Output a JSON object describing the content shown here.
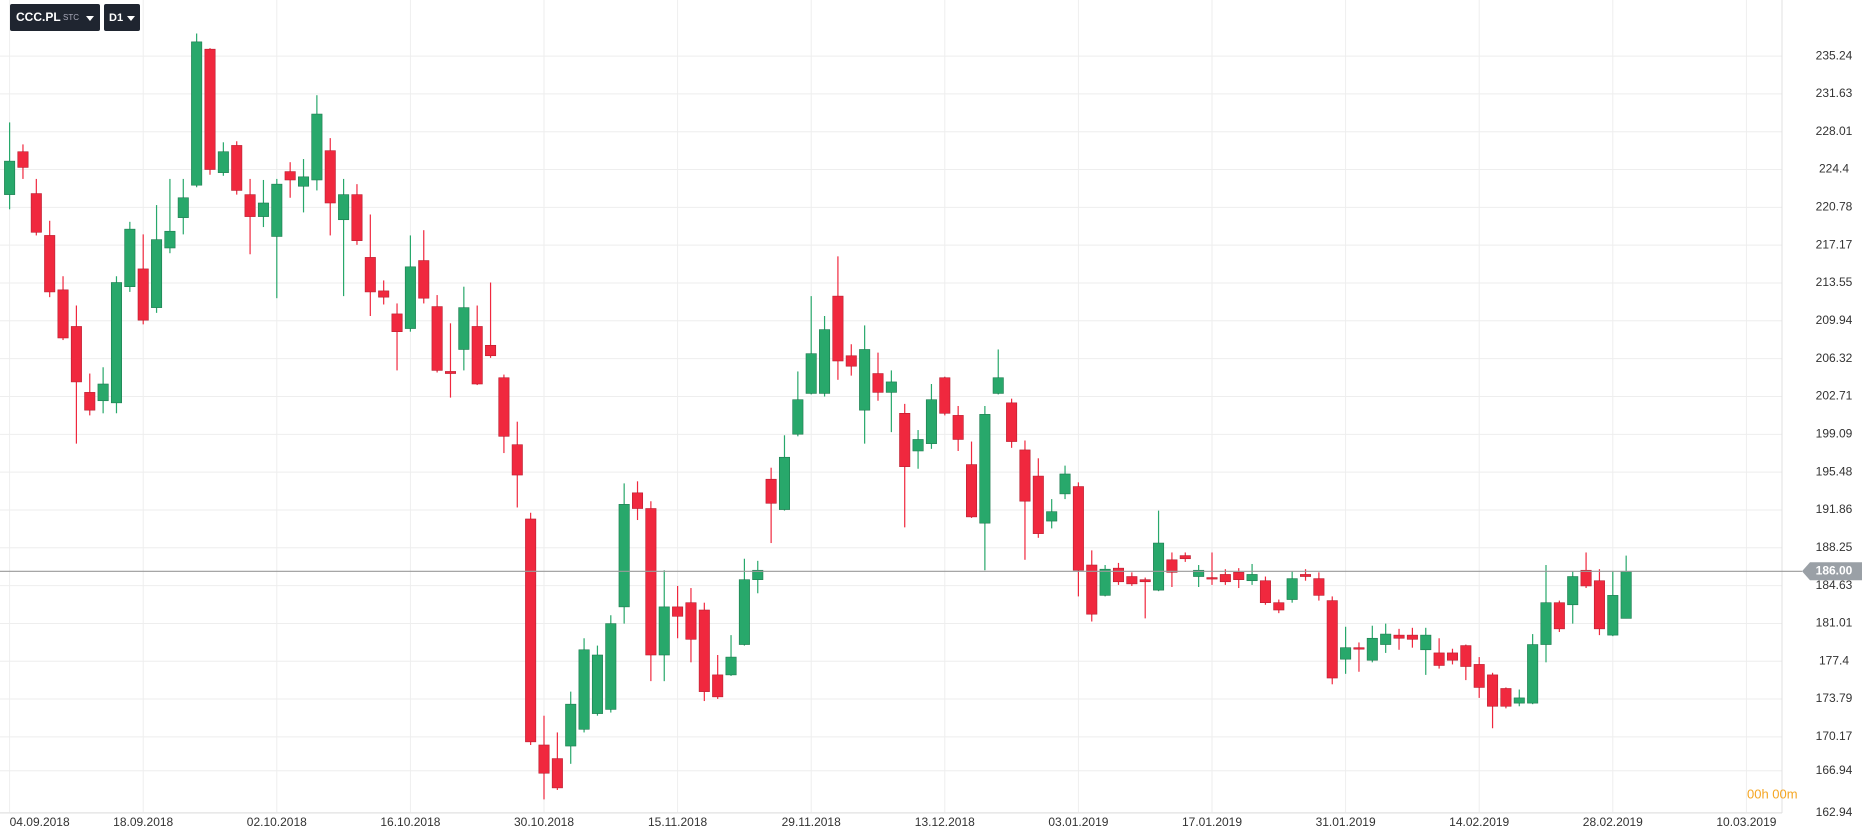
{
  "chart_data": {
    "type": "candlestick",
    "symbol": "CCC.PL",
    "market": "STC",
    "timeframe": "D1",
    "countdown": "00h 00m",
    "current_price": {
      "value": 186,
      "label": "186.00"
    },
    "up_color": "#28a86b",
    "down_color": "#f0283e",
    "grid": true,
    "categories": [
      "04.09.2018",
      null,
      null,
      null,
      null,
      null,
      null,
      null,
      null,
      null,
      "18.09.2018",
      null,
      null,
      null,
      null,
      null,
      null,
      null,
      null,
      null,
      "02.10.2018",
      null,
      null,
      null,
      null,
      null,
      null,
      null,
      null,
      null,
      "16.10.2018",
      null,
      null,
      null,
      null,
      null,
      null,
      null,
      null,
      null,
      "30.10.2018",
      null,
      null,
      null,
      null,
      null,
      null,
      null,
      null,
      null,
      "15.11.2018",
      null,
      null,
      null,
      null,
      null,
      null,
      null,
      null,
      null,
      "29.11.2018",
      null,
      null,
      null,
      null,
      null,
      null,
      null,
      null,
      null,
      "13.12.2018",
      null,
      null,
      null,
      null,
      null,
      null,
      null,
      null,
      null,
      "03.01.2019",
      null,
      null,
      null,
      null,
      null,
      null,
      null,
      null,
      null,
      "17.01.2019",
      null,
      null,
      null,
      null,
      null,
      null,
      null,
      null,
      null,
      "31.01.2019",
      null,
      null,
      null,
      null,
      null,
      null,
      null,
      null,
      null,
      "14.02.2019",
      null,
      null,
      null,
      null,
      null,
      null,
      null,
      null,
      null,
      "28.02.2019",
      null,
      null,
      null,
      null,
      null,
      null,
      null,
      null,
      null,
      "10.03.2019"
    ],
    "open": [
      222.0,
      226.1,
      222.1,
      218.1,
      212.9,
      209.4,
      203.1,
      202.3,
      202.1,
      213.2,
      214.9,
      211.2,
      216.9,
      219.8,
      222.9,
      235.9,
      224.1,
      226.7,
      222.0,
      219.9,
      218.0,
      224.2,
      222.8,
      223.4,
      226.2,
      219.6,
      222.0,
      216.0,
      212.8,
      210.6,
      209.2,
      215.7,
      211.3,
      205.1,
      207.2,
      209.4,
      207.6,
      204.5,
      198.1,
      191.0,
      169.4,
      168.1,
      169.3,
      170.9,
      172.4,
      172.8,
      182.6,
      193.5,
      192.0,
      178.0,
      182.6,
      183.0,
      182.3,
      176.1,
      176.1,
      179.0,
      185.2,
      194.8,
      191.9,
      199.1,
      203.0,
      203.0,
      212.3,
      206.6,
      201.4,
      204.9,
      203.1,
      201.1,
      197.5,
      198.2,
      204.5,
      200.9,
      196.2,
      190.6,
      203.0,
      202.1,
      197.6,
      195.1,
      190.8,
      193.4,
      194.1,
      186.6,
      183.7,
      186.3,
      185.5,
      185.2,
      184.2,
      187.1,
      187.5,
      185.5,
      185.4,
      185.7,
      185.9,
      185.1,
      185.1,
      183.0,
      183.3,
      185.7,
      185.3,
      183.2,
      177.6,
      178.7,
      177.5,
      179.0,
      179.9,
      179.9,
      178.5,
      178.2,
      178.2,
      178.9,
      177.1,
      176.1,
      174.8,
      173.4,
      173.4,
      179.0,
      183.0,
      182.8,
      186.1,
      185.1,
      179.9,
      181.5,
      null,
      null,
      null,
      null,
      null,
      null,
      null,
      null,
      null
    ],
    "close": [
      225.2,
      224.6,
      218.4,
      212.7,
      208.3,
      204.1,
      201.4,
      203.9,
      213.6,
      218.7,
      210.0,
      217.7,
      218.5,
      221.7,
      236.6,
      224.4,
      226.1,
      222.4,
      219.9,
      221.2,
      223.0,
      223.4,
      223.7,
      229.7,
      221.2,
      222.0,
      217.6,
      212.7,
      212.2,
      208.9,
      215.1,
      212.1,
      205.2,
      204.9,
      211.2,
      203.9,
      206.6,
      198.9,
      195.2,
      169.7,
      166.7,
      165.3,
      173.3,
      178.5,
      178.0,
      181.0,
      192.4,
      192.0,
      178.0,
      182.6,
      181.7,
      179.5,
      174.5,
      174.0,
      177.8,
      185.2,
      186.1,
      192.5,
      196.9,
      202.4,
      206.8,
      209.1,
      206.1,
      205.6,
      207.2,
      203.1,
      204.1,
      196.0,
      198.6,
      202.4,
      201.1,
      198.6,
      191.2,
      201.0,
      204.5,
      198.4,
      192.7,
      189.6,
      191.7,
      195.3,
      186.1,
      181.9,
      186.2,
      185.0,
      184.8,
      185.0,
      188.7,
      185.9,
      187.2,
      186.1,
      185.3,
      185.0,
      185.2,
      185.7,
      183.0,
      182.3,
      185.3,
      185.5,
      183.7,
      175.8,
      178.7,
      178.6,
      179.6,
      180.0,
      179.6,
      179.5,
      179.9,
      177.0,
      177.5,
      176.9,
      174.9,
      173.1,
      173.1,
      173.9,
      179.0,
      183.0,
      180.5,
      185.5,
      184.6,
      180.5,
      183.7,
      186.0,
      null,
      null,
      null,
      null,
      null,
      null,
      null,
      null,
      null
    ],
    "high": [
      228.9,
      226.8,
      223.5,
      219.5,
      214.2,
      211.4,
      204.9,
      205.5,
      214.2,
      219.4,
      218.2,
      221.0,
      223.5,
      223.5,
      237.4,
      236.0,
      227.0,
      227.1,
      223.5,
      223.4,
      223.5,
      225.1,
      225.4,
      231.5,
      227.4,
      223.5,
      223.0,
      220.1,
      213.8,
      211.6,
      218.1,
      218.6,
      212.4,
      209.7,
      213.2,
      211.4,
      213.6,
      204.8,
      200.3,
      191.6,
      172.2,
      170.6,
      174.5,
      179.6,
      178.9,
      181.8,
      194.4,
      194.6,
      192.7,
      186.1,
      184.6,
      184.4,
      183.0,
      178.0,
      179.9,
      187.2,
      187.0,
      195.9,
      199.0,
      205.1,
      212.3,
      210.4,
      216.1,
      207.7,
      209.5,
      206.9,
      205.2,
      202.0,
      199.5,
      203.9,
      204.6,
      201.8,
      198.4,
      201.8,
      207.2,
      202.5,
      198.5,
      196.8,
      192.9,
      196.1,
      194.5,
      188.0,
      186.6,
      186.8,
      185.9,
      185.4,
      191.8,
      187.8,
      187.8,
      186.6,
      187.8,
      186.2,
      186.3,
      186.7,
      185.5,
      183.3,
      186.0,
      186.2,
      185.9,
      183.6,
      180.7,
      179.2,
      180.8,
      181.0,
      180.5,
      180.6,
      180.6,
      179.6,
      178.6,
      179.0,
      177.8,
      176.3,
      174.9,
      174.7,
      180.0,
      186.6,
      183.2,
      186.0,
      187.8,
      186.2,
      186.0,
      187.5,
      null,
      null,
      null,
      null,
      null,
      null,
      null,
      null,
      null
    ],
    "low": [
      220.6,
      223.5,
      218.1,
      212.2,
      208.1,
      198.2,
      200.9,
      201.1,
      201.1,
      212.7,
      209.6,
      210.7,
      216.4,
      218.2,
      222.7,
      223.9,
      223.8,
      222.0,
      216.3,
      218.9,
      212.1,
      221.7,
      220.3,
      222.4,
      218.1,
      212.3,
      217.2,
      210.4,
      211.5,
      205.2,
      208.9,
      211.6,
      205.0,
      202.6,
      205.2,
      203.8,
      206.4,
      197.3,
      192.1,
      169.4,
      164.2,
      165.1,
      167.6,
      170.6,
      172.2,
      172.5,
      181.0,
      190.9,
      175.5,
      175.5,
      179.6,
      177.3,
      173.6,
      173.8,
      176.0,
      178.9,
      183.9,
      188.7,
      191.8,
      198.9,
      202.9,
      202.7,
      204.3,
      204.7,
      198.2,
      202.3,
      199.3,
      190.2,
      195.8,
      197.7,
      200.9,
      197.5,
      191.1,
      186.1,
      202.9,
      197.8,
      187.1,
      189.2,
      190.1,
      192.9,
      183.6,
      181.2,
      183.6,
      184.7,
      184.6,
      181.5,
      184.1,
      184.5,
      186.9,
      184.5,
      184.7,
      184.7,
      184.4,
      184.7,
      182.8,
      182.0,
      183.0,
      185.1,
      183.2,
      175.2,
      176.2,
      176.4,
      177.3,
      178.2,
      178.5,
      178.7,
      176.1,
      176.7,
      177.1,
      175.6,
      173.9,
      171.0,
      172.9,
      173.1,
      173.3,
      177.3,
      180.2,
      181.0,
      184.4,
      179.9,
      179.8,
      181.5,
      null,
      null,
      null,
      null,
      null,
      null,
      null,
      null,
      null
    ],
    "ylim": [
      162.9,
      240.6
    ],
    "yticks": [
      235.24,
      231.63,
      228.01,
      224.4,
      220.78,
      217.17,
      213.55,
      209.94,
      206.32,
      202.71,
      199.09,
      195.48,
      191.86,
      188.25,
      184.63,
      181.01,
      177.4,
      173.79,
      170.17,
      166.94,
      162.94
    ]
  }
}
